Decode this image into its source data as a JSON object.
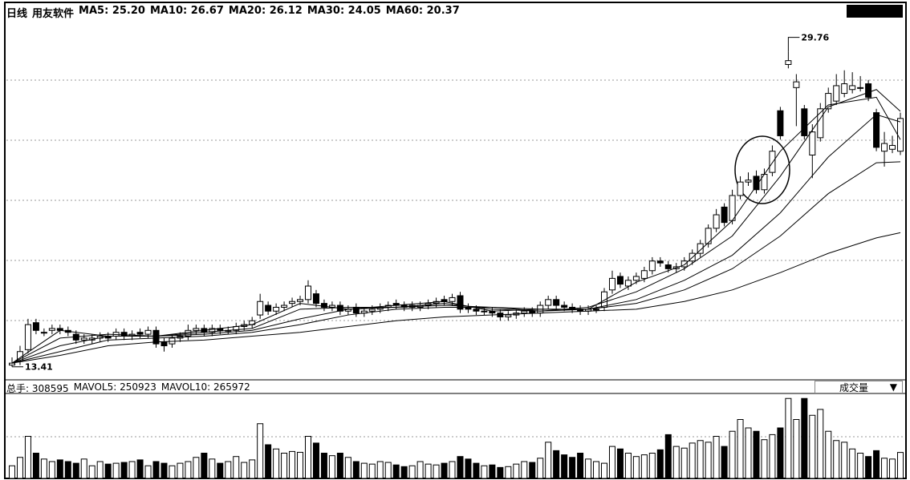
{
  "chart_data": {
    "type": "candlestick",
    "period": "日线",
    "title": "用友软件",
    "ma_header": [
      {
        "name": "MA5",
        "value": "25.20"
      },
      {
        "name": "MA10",
        "value": "26.67"
      },
      {
        "name": "MA20",
        "value": "26.12"
      },
      {
        "name": "MA30",
        "value": "24.05"
      },
      {
        "name": "MA60",
        "value": "20.37"
      }
    ],
    "ylim": [
      12.9,
      31.2
    ],
    "open": [
      13.5,
      13.7,
      14.3,
      15.7,
      15.2,
      15.3,
      15.4,
      15.3,
      15.1,
      14.8,
      14.8,
      14.9,
      15.0,
      15.0,
      15.2,
      15.0,
      15.2,
      15.1,
      15.3,
      14.7,
      14.6,
      14.9,
      15.0,
      15.3,
      15.4,
      15.2,
      15.4,
      15.3,
      15.3,
      15.5,
      15.6,
      16.1,
      16.6,
      16.3,
      16.5,
      16.7,
      16.8,
      16.9,
      17.2,
      16.7,
      16.5,
      16.6,
      16.3,
      16.5,
      16.2,
      16.3,
      16.4,
      16.5,
      16.7,
      16.6,
      16.5,
      16.5,
      16.6,
      16.7,
      16.9,
      16.8,
      17.1,
      16.5,
      16.4,
      16.3,
      16.3,
      16.2,
      16.0,
      16.1,
      16.2,
      16.3,
      16.2,
      16.6,
      16.9,
      16.6,
      16.5,
      16.4,
      16.3,
      16.4,
      16.5,
      17.4,
      18.1,
      17.6,
      17.9,
      18.0,
      18.4,
      18.9,
      18.7,
      18.5,
      18.6,
      18.9,
      19.3,
      19.8,
      20.6,
      21.7,
      21.0,
      22.3,
      23.0,
      23.3,
      22.6,
      23.5,
      26.7,
      29.1,
      27.9,
      26.8,
      24.4,
      25.3,
      26.8,
      27.2,
      27.6,
      27.8,
      27.9,
      28.1,
      26.6,
      24.6,
      24.7,
      24.6
    ],
    "high": [
      13.9,
      14.5,
      15.9,
      15.9,
      15.4,
      15.6,
      15.6,
      15.5,
      15.3,
      15.1,
      15.1,
      15.2,
      15.2,
      15.4,
      15.4,
      15.3,
      15.4,
      15.5,
      15.5,
      14.9,
      15.1,
      15.2,
      15.6,
      15.6,
      15.6,
      15.6,
      15.6,
      15.5,
      15.7,
      15.8,
      16.0,
      17.2,
      16.8,
      16.7,
      16.8,
      17.0,
      17.1,
      17.9,
      17.4,
      16.9,
      16.8,
      16.8,
      16.6,
      16.7,
      16.5,
      16.6,
      16.7,
      16.8,
      16.9,
      16.8,
      16.8,
      16.8,
      16.9,
      17.0,
      17.1,
      17.2,
      17.3,
      16.7,
      16.6,
      16.5,
      16.5,
      16.4,
      16.3,
      16.4,
      16.5,
      16.5,
      16.8,
      17.1,
      17.1,
      16.8,
      16.7,
      16.6,
      16.6,
      16.6,
      17.5,
      18.4,
      18.3,
      18.1,
      18.3,
      18.6,
      19.1,
      19.1,
      18.9,
      18.8,
      19.1,
      19.5,
      20.0,
      20.8,
      21.6,
      21.9,
      22.6,
      23.3,
      23.5,
      23.6,
      23.7,
      24.9,
      26.9,
      29.76,
      28.6,
      27.0,
      26.0,
      27.1,
      27.9,
      28.6,
      28.8,
      28.7,
      28.5,
      28.3,
      26.8,
      25.6,
      25.4,
      26.6
    ],
    "low": [
      13.41,
      13.5,
      14.1,
      15.1,
      15.0,
      15.1,
      15.1,
      15.0,
      14.6,
      14.6,
      14.6,
      14.7,
      14.7,
      14.8,
      14.8,
      14.8,
      14.9,
      14.9,
      14.4,
      14.2,
      14.4,
      14.7,
      14.8,
      15.1,
      15.0,
      15.0,
      15.1,
      15.1,
      15.1,
      15.3,
      15.4,
      15.9,
      16.1,
      16.1,
      16.3,
      16.5,
      16.6,
      16.7,
      16.5,
      16.3,
      16.3,
      16.1,
      16.1,
      16.0,
      16.0,
      16.1,
      16.2,
      16.3,
      16.4,
      16.3,
      16.3,
      16.3,
      16.4,
      16.5,
      16.6,
      16.6,
      16.2,
      16.2,
      16.1,
      16.1,
      16.0,
      15.8,
      15.8,
      15.9,
      16.0,
      16.0,
      16.0,
      16.4,
      16.4,
      16.3,
      16.2,
      16.1,
      16.1,
      16.2,
      16.3,
      17.2,
      17.5,
      17.4,
      17.7,
      17.8,
      18.2,
      18.6,
      18.3,
      18.3,
      18.4,
      18.7,
      19.1,
      19.6,
      20.4,
      20.7,
      20.8,
      22.1,
      22.8,
      22.4,
      22.4,
      23.3,
      25.2,
      28.9,
      25.9,
      25.2,
      23.2,
      25.1,
      26.6,
      27.0,
      27.4,
      27.6,
      27.7,
      27.2,
      24.6,
      23.8,
      24.5,
      24.4
    ],
    "close": [
      13.6,
      14.2,
      15.6,
      15.3,
      15.2,
      15.4,
      15.3,
      15.2,
      14.8,
      14.9,
      14.9,
      15.0,
      14.9,
      15.2,
      15.0,
      15.1,
      15.1,
      15.3,
      14.6,
      14.5,
      14.9,
      15.0,
      15.3,
      15.4,
      15.2,
      15.4,
      15.3,
      15.3,
      15.5,
      15.6,
      15.8,
      16.8,
      16.3,
      16.5,
      16.6,
      16.8,
      16.9,
      17.6,
      16.7,
      16.5,
      16.6,
      16.3,
      16.4,
      16.2,
      16.3,
      16.4,
      16.5,
      16.6,
      16.6,
      16.5,
      16.6,
      16.6,
      16.7,
      16.8,
      16.8,
      17.0,
      16.4,
      16.4,
      16.3,
      16.3,
      16.2,
      16.0,
      16.1,
      16.2,
      16.3,
      16.2,
      16.6,
      16.9,
      16.6,
      16.5,
      16.4,
      16.3,
      16.4,
      16.4,
      17.3,
      18.0,
      17.7,
      17.9,
      18.1,
      18.4,
      18.9,
      18.8,
      18.5,
      18.6,
      18.9,
      19.3,
      19.8,
      20.6,
      21.3,
      20.9,
      22.3,
      23.0,
      23.1,
      22.6,
      23.4,
      24.6,
      25.4,
      29.3,
      28.2,
      25.4,
      25.6,
      26.8,
      27.6,
      28.0,
      28.1,
      28.0,
      27.9,
      27.4,
      24.8,
      25.0,
      24.9,
      26.3
    ],
    "ma_x": [
      0,
      6,
      12,
      18,
      24,
      30,
      36,
      42,
      48,
      54,
      60,
      66,
      72,
      78,
      84,
      90,
      96,
      102,
      108,
      111
    ],
    "ma_series": [
      {
        "name": "MA5",
        "color": "#000000",
        "values": [
          13.6,
          15.3,
          15.0,
          15.0,
          15.3,
          15.6,
          16.7,
          16.4,
          16.6,
          16.8,
          16.3,
          16.4,
          16.4,
          17.8,
          18.7,
          21.0,
          24.6,
          27.0,
          27.4,
          25.2
        ]
      },
      {
        "name": "MA10",
        "color": "#000000",
        "values": [
          13.6,
          14.9,
          15.1,
          15.0,
          15.2,
          15.4,
          16.4,
          16.5,
          16.5,
          16.7,
          16.4,
          16.3,
          16.5,
          17.3,
          18.5,
          20.2,
          23.3,
          26.9,
          27.8,
          26.67
        ]
      },
      {
        "name": "MA20",
        "color": "#000000",
        "values": [
          13.6,
          14.5,
          15.0,
          15.0,
          15.1,
          15.3,
          15.9,
          16.4,
          16.5,
          16.6,
          16.5,
          16.3,
          16.4,
          16.9,
          17.9,
          19.2,
          21.4,
          24.3,
          26.5,
          26.12
        ]
      },
      {
        "name": "MA30",
        "color": "#000000",
        "values": [
          13.6,
          14.2,
          14.8,
          14.9,
          15.0,
          15.2,
          15.6,
          16.1,
          16.4,
          16.5,
          16.5,
          16.4,
          16.4,
          16.7,
          17.4,
          18.5,
          20.2,
          22.4,
          24.0,
          24.05
        ]
      },
      {
        "name": "MA60",
        "color": "#000000",
        "values": [
          13.6,
          14.0,
          14.5,
          14.7,
          14.8,
          15.0,
          15.2,
          15.5,
          15.8,
          16.0,
          16.1,
          16.2,
          16.3,
          16.4,
          16.8,
          17.4,
          18.3,
          19.3,
          20.1,
          20.37
        ]
      }
    ],
    "volume": {
      "total_label": "总手",
      "selector": "成交量",
      "ylim": [
        0,
        1000000
      ],
      "indicators": [
        {
          "name": "MAVOL5",
          "value": "250923"
        },
        {
          "name": "MAVOL10",
          "value": "265972"
        }
      ],
      "values": [
        150000,
        250000,
        500000,
        300000,
        230000,
        200000,
        220000,
        200000,
        180000,
        230000,
        150000,
        200000,
        170000,
        180000,
        190000,
        200000,
        220000,
        150000,
        200000,
        180000,
        150000,
        180000,
        200000,
        250000,
        300000,
        230000,
        180000,
        200000,
        260000,
        190000,
        220000,
        650000,
        400000,
        350000,
        300000,
        320000,
        310000,
        500000,
        420000,
        300000,
        270000,
        300000,
        250000,
        200000,
        180000,
        170000,
        200000,
        190000,
        160000,
        140000,
        150000,
        200000,
        170000,
        160000,
        180000,
        200000,
        260000,
        230000,
        180000,
        150000,
        160000,
        130000,
        140000,
        170000,
        200000,
        190000,
        240000,
        430000,
        330000,
        280000,
        250000,
        300000,
        230000,
        200000,
        180000,
        380000,
        350000,
        300000,
        260000,
        280000,
        300000,
        340000,
        520000,
        380000,
        360000,
        420000,
        450000,
        430000,
        500000,
        380000,
        560000,
        700000,
        600000,
        560000,
        460000,
        520000,
        600000,
        950000,
        700000,
        950000,
        750000,
        820000,
        560000,
        450000,
        430000,
        350000,
        300000,
        260000,
        330000,
        240000,
        230000,
        308595
      ]
    }
  }
}
